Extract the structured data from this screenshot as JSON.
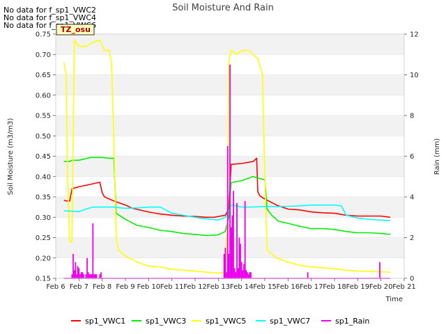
{
  "nodata": [
    "No data for f_sp1_VWC2",
    "No data for f_sp1_VWC4",
    "No data for f_sp1_VWC6"
  ],
  "site_label": "TZ_osu",
  "colors": {
    "sp1_VWC1": "#ff0000",
    "sp1_VWC3": "#00ee00",
    "sp1_VWC5": "#ffff00",
    "sp1_VWC7": "#00ffff",
    "sp1_Rain": "#ee00ee",
    "band": "#f2f2f2",
    "site_label_bg": "#ffffc0"
  },
  "chart_data": {
    "type": "line",
    "title": "Soil Moisture And Rain",
    "xlabel": "Time",
    "ylabel": "Soil Moisture (m3/m3)",
    "y2label": "Rain (mm)",
    "xlim": [
      6,
      21
    ],
    "ylim": [
      0.15,
      0.75
    ],
    "y2lim": [
      0,
      12
    ],
    "grid": true,
    "legend_position": "bottom",
    "x_ticks": [
      "Feb 6",
      "Feb 7",
      "Feb 8",
      "Feb 9",
      "Feb 10",
      "Feb 11",
      "Feb 12",
      "Feb 13",
      "Feb 14",
      "Feb 15",
      "Feb 16",
      "Feb 17",
      "Feb 18",
      "Feb 19",
      "Feb 20",
      "Feb 21"
    ],
    "y_ticks": [
      "0.15",
      "0.20",
      "0.25",
      "0.30",
      "0.35",
      "0.40",
      "0.45",
      "0.50",
      "0.55",
      "0.60",
      "0.65",
      "0.70",
      "0.75"
    ],
    "y2_ticks": [
      "0",
      "2",
      "4",
      "6",
      "8",
      "10",
      "12"
    ],
    "series": [
      {
        "name": "sp1_VWC1",
        "axis": "left",
        "x": [
          6.35,
          6.45,
          6.6,
          6.7,
          7.0,
          7.5,
          7.9,
          8.0,
          8.1,
          8.5,
          9.0,
          9.3,
          10.0,
          10.5,
          11.0,
          11.5,
          12.0,
          12.5,
          12.8,
          13.0,
          13.3,
          13.45,
          13.55,
          14.0,
          14.5,
          14.65,
          14.7,
          14.8,
          15.0,
          15.5,
          16.0,
          16.5,
          17.0,
          17.5,
          18.0,
          18.5,
          19.0,
          19.5,
          20.0,
          20.4
        ],
        "y": [
          0.342,
          0.34,
          0.34,
          0.37,
          0.375,
          0.381,
          0.386,
          0.36,
          0.35,
          0.34,
          0.33,
          0.322,
          0.313,
          0.308,
          0.305,
          0.303,
          0.302,
          0.3,
          0.3,
          0.302,
          0.305,
          0.32,
          0.43,
          0.432,
          0.437,
          0.445,
          0.362,
          0.352,
          0.345,
          0.33,
          0.32,
          0.318,
          0.313,
          0.311,
          0.31,
          0.305,
          0.303,
          0.303,
          0.303,
          0.3
        ]
      },
      {
        "name": "sp1_VWC3",
        "axis": "left",
        "x": [
          6.35,
          6.6,
          6.7,
          7.0,
          7.5,
          8.0,
          8.3,
          8.5,
          8.6,
          9.0,
          9.5,
          10.0,
          10.5,
          11.0,
          11.5,
          12.0,
          12.5,
          13.0,
          13.3,
          13.45,
          13.55,
          14.0,
          14.5,
          14.8,
          15.0,
          15.1,
          15.3,
          15.6,
          16.0,
          16.5,
          17.0,
          17.5,
          18.0,
          18.5,
          19.0,
          19.5,
          20.0,
          20.4
        ],
        "y": [
          0.437,
          0.437,
          0.44,
          0.44,
          0.447,
          0.447,
          0.445,
          0.445,
          0.31,
          0.295,
          0.28,
          0.275,
          0.268,
          0.265,
          0.26,
          0.258,
          0.255,
          0.257,
          0.265,
          0.3,
          0.385,
          0.39,
          0.4,
          0.395,
          0.392,
          0.32,
          0.305,
          0.29,
          0.285,
          0.278,
          0.272,
          0.272,
          0.27,
          0.265,
          0.262,
          0.262,
          0.26,
          0.258
        ]
      },
      {
        "name": "sp1_VWC5",
        "axis": "left",
        "x": [
          6.35,
          6.45,
          6.5,
          6.6,
          6.7,
          6.8,
          7.0,
          7.3,
          7.6,
          7.9,
          8.1,
          8.3,
          8.4,
          8.5,
          8.6,
          8.7,
          9.0,
          9.5,
          10.0,
          10.5,
          11.0,
          11.5,
          12.0,
          12.5,
          13.0,
          13.3,
          13.4,
          13.45,
          13.55,
          13.8,
          14.0,
          14.3,
          14.5,
          14.7,
          14.9,
          15.0,
          15.1,
          15.5,
          16.0,
          16.5,
          17.0,
          17.5,
          18.0,
          18.5,
          19.0,
          19.5,
          20.0,
          20.4
        ],
        "y": [
          0.68,
          0.65,
          0.42,
          0.24,
          0.24,
          0.735,
          0.72,
          0.72,
          0.73,
          0.735,
          0.71,
          0.71,
          0.68,
          0.5,
          0.25,
          0.22,
          0.205,
          0.19,
          0.18,
          0.178,
          0.172,
          0.17,
          0.168,
          0.165,
          0.163,
          0.165,
          0.3,
          0.68,
          0.71,
          0.7,
          0.71,
          0.71,
          0.7,
          0.69,
          0.65,
          0.4,
          0.22,
          0.2,
          0.19,
          0.182,
          0.178,
          0.176,
          0.174,
          0.17,
          0.168,
          0.167,
          0.166,
          0.165
        ]
      },
      {
        "name": "sp1_VWC7",
        "axis": "left",
        "x": [
          6.35,
          6.7,
          7.0,
          7.3,
          7.6,
          8.0,
          8.5,
          9.0,
          9.5,
          10.0,
          10.5,
          11.0,
          11.5,
          12.0,
          12.5,
          13.0,
          13.3,
          13.45,
          13.55,
          13.8,
          14.0,
          14.5,
          15.0,
          15.5,
          16.0,
          16.5,
          17.0,
          17.5,
          18.0,
          18.3,
          18.5,
          19.0,
          19.5,
          20.0,
          20.4
        ],
        "y": [
          0.316,
          0.315,
          0.314,
          0.32,
          0.325,
          0.325,
          0.325,
          0.322,
          0.323,
          0.325,
          0.325,
          0.31,
          0.305,
          0.3,
          0.296,
          0.293,
          0.3,
          0.315,
          0.33,
          0.328,
          0.325,
          0.325,
          0.327,
          0.326,
          0.327,
          0.328,
          0.33,
          0.33,
          0.33,
          0.328,
          0.305,
          0.298,
          0.295,
          0.293,
          0.292
        ]
      },
      {
        "name": "sp1_Rain",
        "axis": "right",
        "x": [
          6.7,
          6.75,
          6.8,
          6.85,
          6.9,
          6.95,
          7.0,
          7.05,
          7.1,
          7.15,
          7.2,
          7.3,
          7.35,
          7.4,
          7.45,
          7.5,
          7.55,
          7.6,
          7.65,
          7.7,
          7.75,
          7.9,
          7.95,
          13.25,
          13.3,
          13.35,
          13.4,
          13.45,
          13.5,
          13.55,
          13.6,
          13.65,
          13.7,
          13.75,
          13.8,
          13.85,
          13.9,
          13.95,
          14.0,
          14.05,
          14.1,
          14.15,
          14.2,
          14.25,
          14.3,
          14.35,
          14.4,
          16.85,
          19.95
        ],
        "y": [
          0.2,
          1.2,
          0.4,
          0.8,
          0.2,
          0.6,
          0.5,
          0.2,
          0.3,
          0.3,
          0.2,
          0.2,
          1.0,
          0.3,
          0.2,
          0.2,
          0.2,
          2.7,
          0.2,
          0.2,
          0.2,
          0.2,
          0.3,
          1.2,
          1.5,
          0.3,
          6.5,
          1.2,
          10.5,
          2.5,
          3.1,
          4.3,
          0.5,
          0.3,
          3.7,
          0.5,
          2.0,
          1.7,
          0.8,
          0.4,
          0.7,
          3.8,
          0.4,
          0.3,
          0.2,
          0.3,
          0.3,
          0.3,
          0.8
        ]
      }
    ]
  }
}
